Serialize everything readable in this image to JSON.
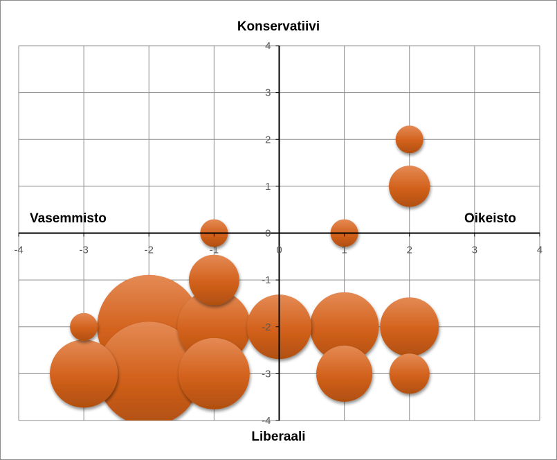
{
  "chart_data": {
    "type": "bubble",
    "labels": {
      "top": "Konservatiivi",
      "bottom": "Liberaali",
      "left": "Vasemmisto",
      "right": "Oikeisto"
    },
    "xlim": [
      -4,
      4
    ],
    "ylim": [
      -4,
      4
    ],
    "x_ticks": [
      "-4",
      "-3",
      "-2",
      "-1",
      "0",
      "1",
      "2",
      "3",
      "4"
    ],
    "y_ticks": [
      "-4",
      "-3",
      "-2",
      "-1",
      "0",
      "1",
      "2",
      "3",
      "4"
    ],
    "grid": true,
    "colors": {
      "bubble": "#d2611b",
      "bubble_light": "#e48a55",
      "bubble_dark": "#b04f10",
      "grid": "#8c8c8c",
      "axis": "#000000",
      "tick_text": "#595959"
    },
    "points": [
      {
        "x": 2,
        "y": 2,
        "size": 1.0
      },
      {
        "x": 2,
        "y": 1,
        "size": 2.2
      },
      {
        "x": 1,
        "y": 0,
        "size": 1.0
      },
      {
        "x": -1,
        "y": 0,
        "size": 1.0
      },
      {
        "x": -1,
        "y": -1,
        "size": 3.3
      },
      {
        "x": -3,
        "y": -2,
        "size": 1.0
      },
      {
        "x": -2,
        "y": -2,
        "size": 14.0
      },
      {
        "x": -1,
        "y": -3,
        "size": 6.6
      },
      {
        "x": -1,
        "y": -2,
        "size": 7.0
      },
      {
        "x": -3,
        "y": -3,
        "size": 6.0
      },
      {
        "x": -2,
        "y": -3,
        "size": 14.0
      },
      {
        "x": 0,
        "y": -2,
        "size": 5.4
      },
      {
        "x": 1,
        "y": -2,
        "size": 6.2
      },
      {
        "x": 2,
        "y": -2,
        "size": 4.5
      },
      {
        "x": 1,
        "y": -3,
        "size": 4.1
      },
      {
        "x": 2,
        "y": -3,
        "size": 2.1
      }
    ]
  }
}
